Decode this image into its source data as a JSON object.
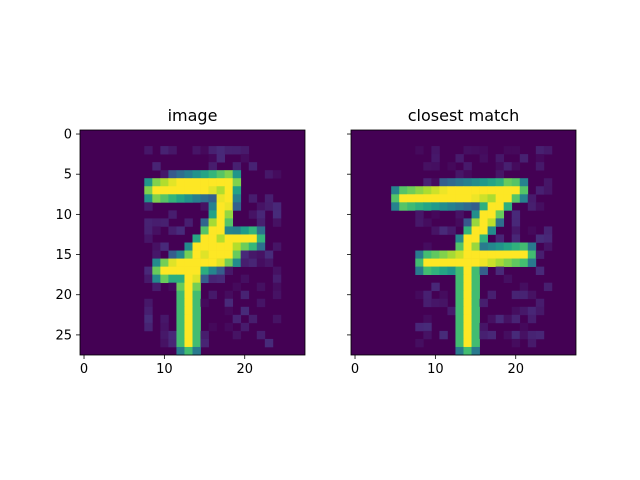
{
  "chart_data": [
    {
      "type": "heatmap",
      "title": "image",
      "xlabel": "",
      "ylabel": "",
      "x_ticks": [
        "0",
        "10",
        "20"
      ],
      "y_ticks": [
        "0",
        "5",
        "10",
        "15",
        "20",
        "25"
      ],
      "xlim": [
        -0.5,
        27.5
      ],
      "ylim": [
        27.5,
        -0.5
      ],
      "grid": false,
      "colormap": "viridis",
      "value_range": [
        0,
        1
      ],
      "strokes": [
        {
          "from": [
            9,
            7
          ],
          "to": [
            18,
            6
          ],
          "w": 1.3
        },
        {
          "from": [
            18,
            6
          ],
          "to": [
            17,
            11
          ],
          "w": 1.0
        },
        {
          "from": [
            17,
            11
          ],
          "to": [
            14,
            15
          ],
          "w": 1.1
        },
        {
          "from": [
            14,
            15
          ],
          "to": [
            13,
            19
          ],
          "w": 1.2
        },
        {
          "from": [
            13,
            19
          ],
          "to": [
            13,
            26
          ],
          "w": 1.0
        },
        {
          "from": [
            10,
            17
          ],
          "to": [
            18,
            15
          ],
          "w": 1.2
        },
        {
          "from": [
            15,
            14
          ],
          "to": [
            21,
            13
          ],
          "w": 0.9
        }
      ]
    },
    {
      "type": "heatmap",
      "title": "closest match",
      "xlabel": "",
      "ylabel": "",
      "x_ticks": [
        "0",
        "10",
        "20"
      ],
      "y_ticks": [],
      "xlim": [
        -0.5,
        27.5
      ],
      "ylim": [
        27.5,
        -0.5
      ],
      "grid": false,
      "colormap": "viridis",
      "value_range": [
        0,
        1
      ],
      "strokes": [
        {
          "from": [
            6,
            8
          ],
          "to": [
            20,
            7
          ],
          "w": 1.1
        },
        {
          "from": [
            19,
            7
          ],
          "to": [
            16,
            11
          ],
          "w": 1.2
        },
        {
          "from": [
            16,
            11
          ],
          "to": [
            14,
            14
          ],
          "w": 1.1
        },
        {
          "from": [
            14,
            14
          ],
          "to": [
            14,
            26
          ],
          "w": 1.0
        },
        {
          "from": [
            9,
            16
          ],
          "to": [
            21,
            15
          ],
          "w": 1.0
        }
      ]
    }
  ],
  "colors": {
    "background_min": "#440154",
    "mid": "#21918c",
    "max": "#fde725"
  }
}
